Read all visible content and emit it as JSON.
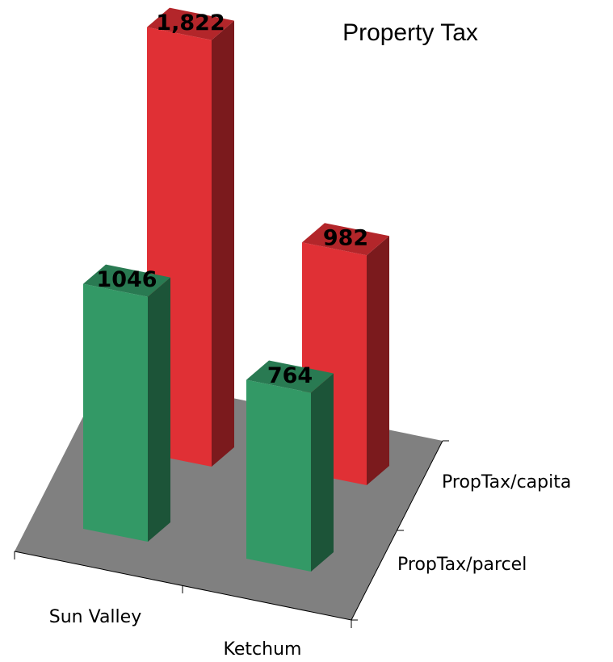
{
  "chart_data": {
    "type": "bar3d",
    "title": "Property Tax",
    "categories": [
      "Sun Valley",
      "Ketchum"
    ],
    "series": [
      {
        "name": "PropTax/parcel",
        "color": "#339966",
        "values": [
          1046,
          764
        ]
      },
      {
        "name": "PropTax/capita",
        "color": "#e03035",
        "values": [
          1822,
          982
        ],
        "value_labels": [
          "1,822",
          "982"
        ]
      }
    ]
  }
}
